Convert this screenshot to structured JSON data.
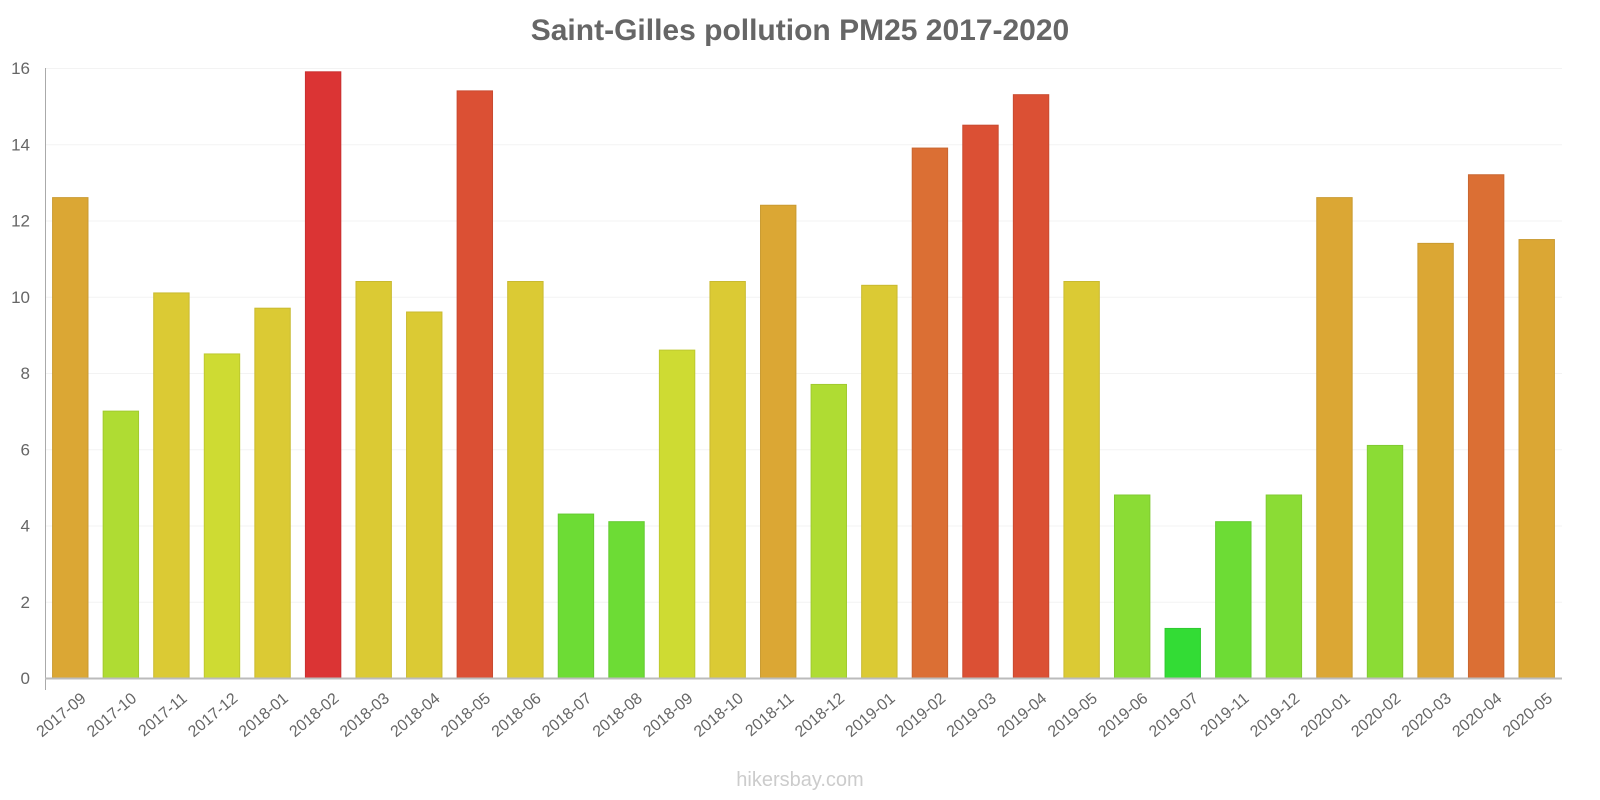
{
  "chart_data": {
    "type": "bar",
    "title": "Saint-Gilles pollution PM25 2017-2020",
    "xlabel": "",
    "ylabel": "",
    "ylim": [
      0,
      16
    ],
    "yticks": [
      0,
      2,
      4,
      6,
      8,
      10,
      12,
      14,
      16
    ],
    "grid": true,
    "legend": null,
    "categories": [
      "2017-09",
      "2017-10",
      "2017-11",
      "2017-12",
      "2018-01",
      "2018-02",
      "2018-03",
      "2018-04",
      "2018-05",
      "2018-06",
      "2018-07",
      "2018-08",
      "2018-09",
      "2018-10",
      "2018-11",
      "2018-12",
      "2019-01",
      "2019-02",
      "2019-03",
      "2019-04",
      "2019-05",
      "2019-06",
      "2019-07",
      "2019-11",
      "2019-12",
      "2020-01",
      "2020-02",
      "2020-03",
      "2020-04",
      "2020-05"
    ],
    "values": [
      12.6,
      7.0,
      10.1,
      8.5,
      9.7,
      15.9,
      10.4,
      9.6,
      15.4,
      10.4,
      4.3,
      4.1,
      8.6,
      10.4,
      12.4,
      7.7,
      10.3,
      13.9,
      14.5,
      15.3,
      10.4,
      4.8,
      1.3,
      4.1,
      4.8,
      12.6,
      6.1,
      11.4,
      13.2,
      11.5
    ],
    "colors": [
      "#dba734",
      "#afdc33",
      "#dbca34",
      "#cedb33",
      "#dbca34",
      "#db3434",
      "#dbca34",
      "#dbca34",
      "#db5034",
      "#dbca34",
      "#6ddc35",
      "#6ddc35",
      "#cedb33",
      "#dbca34",
      "#dba734",
      "#afdc33",
      "#dbca34",
      "#db6f34",
      "#db5034",
      "#db5034",
      "#dbca34",
      "#8bdc35",
      "#33dc35",
      "#6ddc35",
      "#8bdc35",
      "#dba734",
      "#8bdc35",
      "#dba734",
      "#db6f34",
      "#dba734"
    ]
  },
  "watermark": "hikersbay.com"
}
